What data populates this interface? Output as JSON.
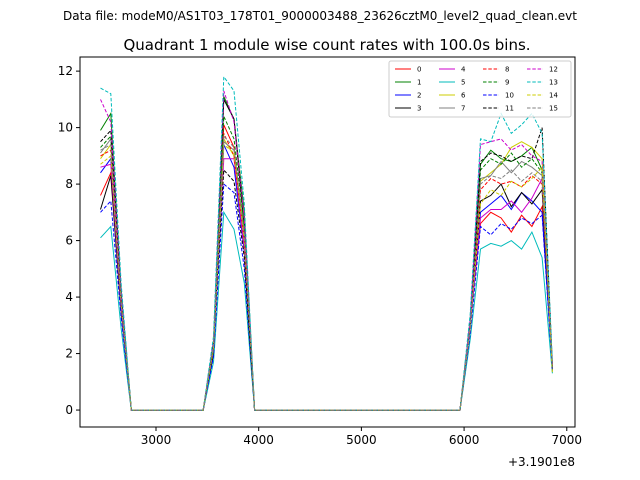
{
  "suptitle": "Data file: modeM0/AS1T03_178T01_9000003488_23626cztM0_level2_quad_clean.evt",
  "chart_data": {
    "type": "line",
    "title": "Quadrant 1 module wise count rates with 100.0s bins.",
    "xlabel": "",
    "ylabel": "",
    "x_offset_label": "+3.1901e8",
    "xlim": [
      2260,
      7080
    ],
    "ylim": [
      -0.6,
      12.5
    ],
    "xticks": [
      3000,
      4000,
      5000,
      6000,
      7000
    ],
    "xtick_labels": [
      "3000",
      "4000",
      "5000",
      "6000",
      "7000"
    ],
    "yticks": [
      0,
      2,
      4,
      6,
      8,
      10,
      12
    ],
    "ytick_labels": [
      "0",
      "2",
      "4",
      "6",
      "8",
      "10",
      "12"
    ],
    "legend_position": "top-right",
    "x": [
      2460,
      2560,
      2660,
      2760,
      2860,
      2960,
      3060,
      3160,
      3260,
      3360,
      3460,
      3560,
      3660,
      3760,
      3860,
      3960,
      4060,
      4160,
      4260,
      4360,
      4460,
      4560,
      4660,
      4760,
      4860,
      4960,
      5060,
      5160,
      5260,
      5360,
      5460,
      5560,
      5660,
      5760,
      5860,
      5960,
      6060,
      6160,
      6260,
      6360,
      6460,
      6560,
      6660,
      6760,
      6860
    ],
    "series": [
      {
        "name": "0",
        "color": "#ff0000",
        "dashed": false,
        "values": [
          7.6,
          8.4,
          3.9,
          0,
          0,
          0,
          0,
          0,
          0,
          0,
          0,
          2.2,
          10.1,
          9.3,
          5.9,
          0,
          0,
          0,
          0,
          0,
          0,
          0,
          0,
          0,
          0,
          0,
          0,
          0,
          0,
          0,
          0,
          0,
          0,
          0,
          0,
          0,
          3.1,
          6.6,
          7.0,
          6.8,
          6.3,
          6.9,
          6.5,
          7.2,
          1.5
        ]
      },
      {
        "name": "1",
        "color": "#008000",
        "dashed": false,
        "values": [
          9.9,
          10.5,
          4.2,
          0,
          0,
          0,
          0,
          0,
          0,
          0,
          0,
          2.3,
          11.1,
          10.3,
          7.0,
          0,
          0,
          0,
          0,
          0,
          0,
          0,
          0,
          0,
          0,
          0,
          0,
          0,
          0,
          0,
          0,
          0,
          0,
          0,
          0,
          0,
          3.2,
          8.7,
          9.2,
          8.9,
          8.8,
          9.0,
          9.3,
          8.5,
          1.6
        ]
      },
      {
        "name": "2",
        "color": "#0000ff",
        "dashed": false,
        "values": [
          8.4,
          8.9,
          3.8,
          0,
          0,
          0,
          0,
          0,
          0,
          0,
          0,
          2.1,
          9.4,
          8.6,
          5.6,
          0,
          0,
          0,
          0,
          0,
          0,
          0,
          0,
          0,
          0,
          0,
          0,
          0,
          0,
          0,
          0,
          0,
          0,
          0,
          0,
          0,
          2.9,
          7.0,
          7.3,
          7.6,
          7.1,
          7.7,
          7.4,
          7.0,
          1.5
        ]
      },
      {
        "name": "3",
        "color": "#000000",
        "dashed": false,
        "values": [
          7.1,
          8.3,
          3.5,
          0,
          0,
          0,
          0,
          0,
          0,
          0,
          0,
          2.0,
          11.0,
          10.3,
          6.5,
          0,
          0,
          0,
          0,
          0,
          0,
          0,
          0,
          0,
          0,
          0,
          0,
          0,
          0,
          0,
          0,
          0,
          0,
          0,
          0,
          0,
          3.0,
          7.4,
          7.6,
          8.0,
          7.2,
          7.7,
          7.3,
          7.8,
          1.4
        ]
      },
      {
        "name": "4",
        "color": "#cc00cc",
        "dashed": false,
        "values": [
          8.6,
          8.7,
          3.7,
          0,
          0,
          0,
          0,
          0,
          0,
          0,
          0,
          2.2,
          8.9,
          8.9,
          5.7,
          0,
          0,
          0,
          0,
          0,
          0,
          0,
          0,
          0,
          0,
          0,
          0,
          0,
          0,
          0,
          0,
          0,
          0,
          0,
          0,
          0,
          2.9,
          6.8,
          7.1,
          7.1,
          7.4,
          7.0,
          7.5,
          8.2,
          1.5
        ]
      },
      {
        "name": "5",
        "color": "#00bbbb",
        "dashed": false,
        "values": [
          6.1,
          6.5,
          2.9,
          0,
          0,
          0,
          0,
          0,
          0,
          0,
          0,
          1.7,
          7.0,
          6.4,
          4.5,
          0,
          0,
          0,
          0,
          0,
          0,
          0,
          0,
          0,
          0,
          0,
          0,
          0,
          0,
          0,
          0,
          0,
          0,
          0,
          0,
          0,
          2.5,
          5.7,
          5.9,
          5.8,
          6.0,
          5.7,
          6.3,
          5.4,
          1.3
        ]
      },
      {
        "name": "6",
        "color": "#cccc00",
        "dashed": false,
        "values": [
          8.9,
          9.4,
          3.9,
          0,
          0,
          0,
          0,
          0,
          0,
          0,
          0,
          2.2,
          9.6,
          9.0,
          6.3,
          0,
          0,
          0,
          0,
          0,
          0,
          0,
          0,
          0,
          0,
          0,
          0,
          0,
          0,
          0,
          0,
          0,
          0,
          0,
          0,
          0,
          3.0,
          8.1,
          8.4,
          8.7,
          9.3,
          9.5,
          9.3,
          8.9,
          1.5
        ]
      },
      {
        "name": "7",
        "color": "#808080",
        "dashed": false,
        "values": [
          9.1,
          9.6,
          4.0,
          0,
          0,
          0,
          0,
          0,
          0,
          0,
          0,
          2.3,
          9.5,
          9.2,
          6.1,
          0,
          0,
          0,
          0,
          0,
          0,
          0,
          0,
          0,
          0,
          0,
          0,
          0,
          0,
          0,
          0,
          0,
          0,
          0,
          0,
          0,
          3.0,
          8.2,
          8.3,
          8.8,
          8.4,
          8.8,
          8.6,
          8.3,
          1.5
        ]
      },
      {
        "name": "8",
        "color": "#ff0000",
        "dashed": true,
        "values": [
          9.0,
          9.2,
          3.9,
          0,
          0,
          0,
          0,
          0,
          0,
          0,
          0,
          2.3,
          9.8,
          9.0,
          6.0,
          0,
          0,
          0,
          0,
          0,
          0,
          0,
          0,
          0,
          0,
          0,
          0,
          0,
          0,
          0,
          0,
          0,
          0,
          0,
          0,
          0,
          3.1,
          7.8,
          8.2,
          8.0,
          8.1,
          7.9,
          8.3,
          8.0,
          1.5
        ]
      },
      {
        "name": "9",
        "color": "#008000",
        "dashed": true,
        "values": [
          9.3,
          9.7,
          4.1,
          0,
          0,
          0,
          0,
          0,
          0,
          0,
          0,
          2.3,
          10.4,
          9.6,
          6.5,
          0,
          0,
          0,
          0,
          0,
          0,
          0,
          0,
          0,
          0,
          0,
          0,
          0,
          0,
          0,
          0,
          0,
          0,
          0,
          0,
          0,
          3.1,
          8.5,
          8.9,
          8.7,
          9.1,
          8.6,
          8.9,
          8.4,
          1.5
        ]
      },
      {
        "name": "10",
        "color": "#0000ff",
        "dashed": true,
        "values": [
          7.0,
          7.4,
          3.3,
          0,
          0,
          0,
          0,
          0,
          0,
          0,
          0,
          1.9,
          8.0,
          7.7,
          5.0,
          0,
          0,
          0,
          0,
          0,
          0,
          0,
          0,
          0,
          0,
          0,
          0,
          0,
          0,
          0,
          0,
          0,
          0,
          0,
          0,
          0,
          2.7,
          6.5,
          6.2,
          6.6,
          6.4,
          6.8,
          6.6,
          6.9,
          1.4
        ]
      },
      {
        "name": "11",
        "color": "#000000",
        "dashed": true,
        "values": [
          9.5,
          9.9,
          4.1,
          0,
          0,
          0,
          0,
          0,
          0,
          0,
          0,
          2.4,
          8.5,
          8.1,
          5.4,
          0,
          0,
          0,
          0,
          0,
          0,
          0,
          0,
          0,
          0,
          0,
          0,
          0,
          0,
          0,
          0,
          0,
          0,
          0,
          0,
          0,
          3.1,
          8.8,
          9.1,
          9.0,
          8.8,
          9.0,
          8.9,
          10.0,
          1.5
        ]
      },
      {
        "name": "12",
        "color": "#cc00cc",
        "dashed": true,
        "values": [
          11.0,
          10.2,
          4.3,
          0,
          0,
          0,
          0,
          0,
          0,
          0,
          0,
          2.5,
          11.3,
          10.2,
          6.8,
          0,
          0,
          0,
          0,
          0,
          0,
          0,
          0,
          0,
          0,
          0,
          0,
          0,
          0,
          0,
          0,
          0,
          0,
          0,
          0,
          0,
          3.2,
          9.4,
          9.5,
          9.6,
          9.2,
          9.4,
          9.0,
          8.8,
          1.6
        ]
      },
      {
        "name": "13",
        "color": "#00bbbb",
        "dashed": true,
        "values": [
          11.4,
          11.2,
          4.5,
          0,
          0,
          0,
          0,
          0,
          0,
          0,
          0,
          2.6,
          11.8,
          11.3,
          7.3,
          0,
          0,
          0,
          0,
          0,
          0,
          0,
          0,
          0,
          0,
          0,
          0,
          0,
          0,
          0,
          0,
          0,
          0,
          0,
          0,
          0,
          3.4,
          9.6,
          9.5,
          10.5,
          9.8,
          10.1,
          10.5,
          9.8,
          1.7
        ]
      },
      {
        "name": "14",
        "color": "#cccc00",
        "dashed": true,
        "values": [
          8.7,
          9.0,
          3.8,
          0,
          0,
          0,
          0,
          0,
          0,
          0,
          0,
          2.2,
          9.4,
          9.1,
          6.0,
          0,
          0,
          0,
          0,
          0,
          0,
          0,
          0,
          0,
          0,
          0,
          0,
          0,
          0,
          0,
          0,
          0,
          0,
          0,
          0,
          0,
          2.9,
          7.3,
          7.8,
          7.6,
          8.1,
          7.9,
          8.2,
          8.6,
          1.3
        ]
      },
      {
        "name": "15",
        "color": "#808080",
        "dashed": true,
        "values": [
          9.2,
          9.4,
          3.9,
          0,
          0,
          0,
          0,
          0,
          0,
          0,
          0,
          2.3,
          9.7,
          9.3,
          6.2,
          0,
          0,
          0,
          0,
          0,
          0,
          0,
          0,
          0,
          0,
          0,
          0,
          0,
          0,
          0,
          0,
          0,
          0,
          0,
          0,
          0,
          3.0,
          8.0,
          8.3,
          8.2,
          8.5,
          8.1,
          8.4,
          8.1,
          1.5
        ]
      }
    ]
  }
}
